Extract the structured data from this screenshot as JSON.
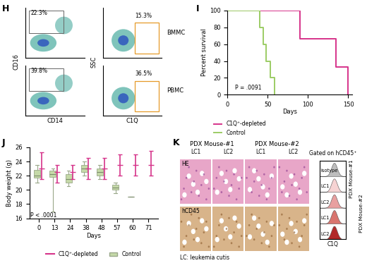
{
  "panel_labels": [
    "H",
    "I",
    "J",
    "K"
  ],
  "flow_cytometry": {
    "rows": [
      "BMMC",
      "PBMC"
    ],
    "plots": [
      {
        "x_label": "CD14",
        "y_label": "CD16",
        "gates": [
          "22.3%",
          "39.8%"
        ]
      },
      {
        "x_label": "C1Q",
        "y_label": "SSC",
        "gates": [
          "15.3%",
          "36.5%"
        ]
      }
    ],
    "tick_labels": false
  },
  "chart_data": [
    {
      "type": "step",
      "xlabel": "Days",
      "ylabel": "Percent survival",
      "xlim": [
        0,
        155
      ],
      "xticks": [
        0,
        50,
        100,
        150
      ],
      "ylim": [
        0,
        100
      ],
      "yticks": [
        0,
        20,
        40,
        60,
        80,
        100
      ],
      "annotation": "P = .0091",
      "legend": "lower left",
      "series": [
        {
          "name": "C1Q⁺-depleted",
          "color": "#d6338a",
          "x": [
            0,
            90,
            135,
            150
          ],
          "values": [
            100,
            66.7,
            33.3,
            0
          ]
        },
        {
          "name": "Control",
          "color": "#9ccc65",
          "x": [
            0,
            40,
            44,
            48,
            53,
            58
          ],
          "values": [
            100,
            80,
            60,
            40,
            20,
            0
          ]
        }
      ]
    },
    {
      "type": "box",
      "xlabel": "Days",
      "ylabel": "Body weight (g)",
      "categories": [
        "0",
        "13",
        "24",
        "38",
        "48",
        "57",
        "60",
        "71"
      ],
      "ylim": [
        16,
        26
      ],
      "yticks": [
        16,
        18,
        20,
        22,
        24,
        26
      ],
      "annotation": "P < .0001",
      "legend": "lower center",
      "series": [
        {
          "name": "C1Q⁺-depleted",
          "color": "#d6338a",
          "type": "errorbar",
          "low": [
            21.5,
            21,
            21.5,
            21.5,
            21.5,
            22,
            22,
            22
          ],
          "median": [
            23,
            22.5,
            22.5,
            23,
            23,
            23.5,
            23.5,
            23.5
          ],
          "high": [
            25.3,
            23.5,
            23.5,
            24.5,
            24.5,
            25,
            25,
            25.5
          ]
        },
        {
          "name": "Control",
          "color": "#c5d9a8",
          "type": "box",
          "min": [
            21,
            17,
            20.5,
            22,
            21.5,
            19.5,
            19,
            null
          ],
          "q1": [
            21.7,
            21.8,
            21,
            22.5,
            22,
            20,
            19,
            null
          ],
          "median": [
            22,
            22.2,
            21.5,
            23,
            22.5,
            20.3,
            19,
            null
          ],
          "q3": [
            22.8,
            22.7,
            22.2,
            23.5,
            23,
            20.7,
            19,
            null
          ],
          "max": [
            23.5,
            23,
            22.7,
            24,
            23.5,
            21,
            19,
            null
          ]
        }
      ]
    }
  ],
  "histology": {
    "groups": [
      "PDX Mouse-#1",
      "PDX Mouse-#2"
    ],
    "columns": [
      "LC1",
      "LC2",
      "LC1",
      "LC2"
    ],
    "rows": [
      "HE",
      "hCD45"
    ],
    "note": "LC: leukemia cutis"
  },
  "flow_histogram": {
    "title": "Gated on hCD45⁺",
    "rows": [
      "isotype",
      "LC1",
      "LC2",
      "LC1",
      "LC2"
    ],
    "x_label": "C1Q",
    "groups": [
      "PDX Mouse-#1",
      "PDX Mouse-#2"
    ]
  }
}
